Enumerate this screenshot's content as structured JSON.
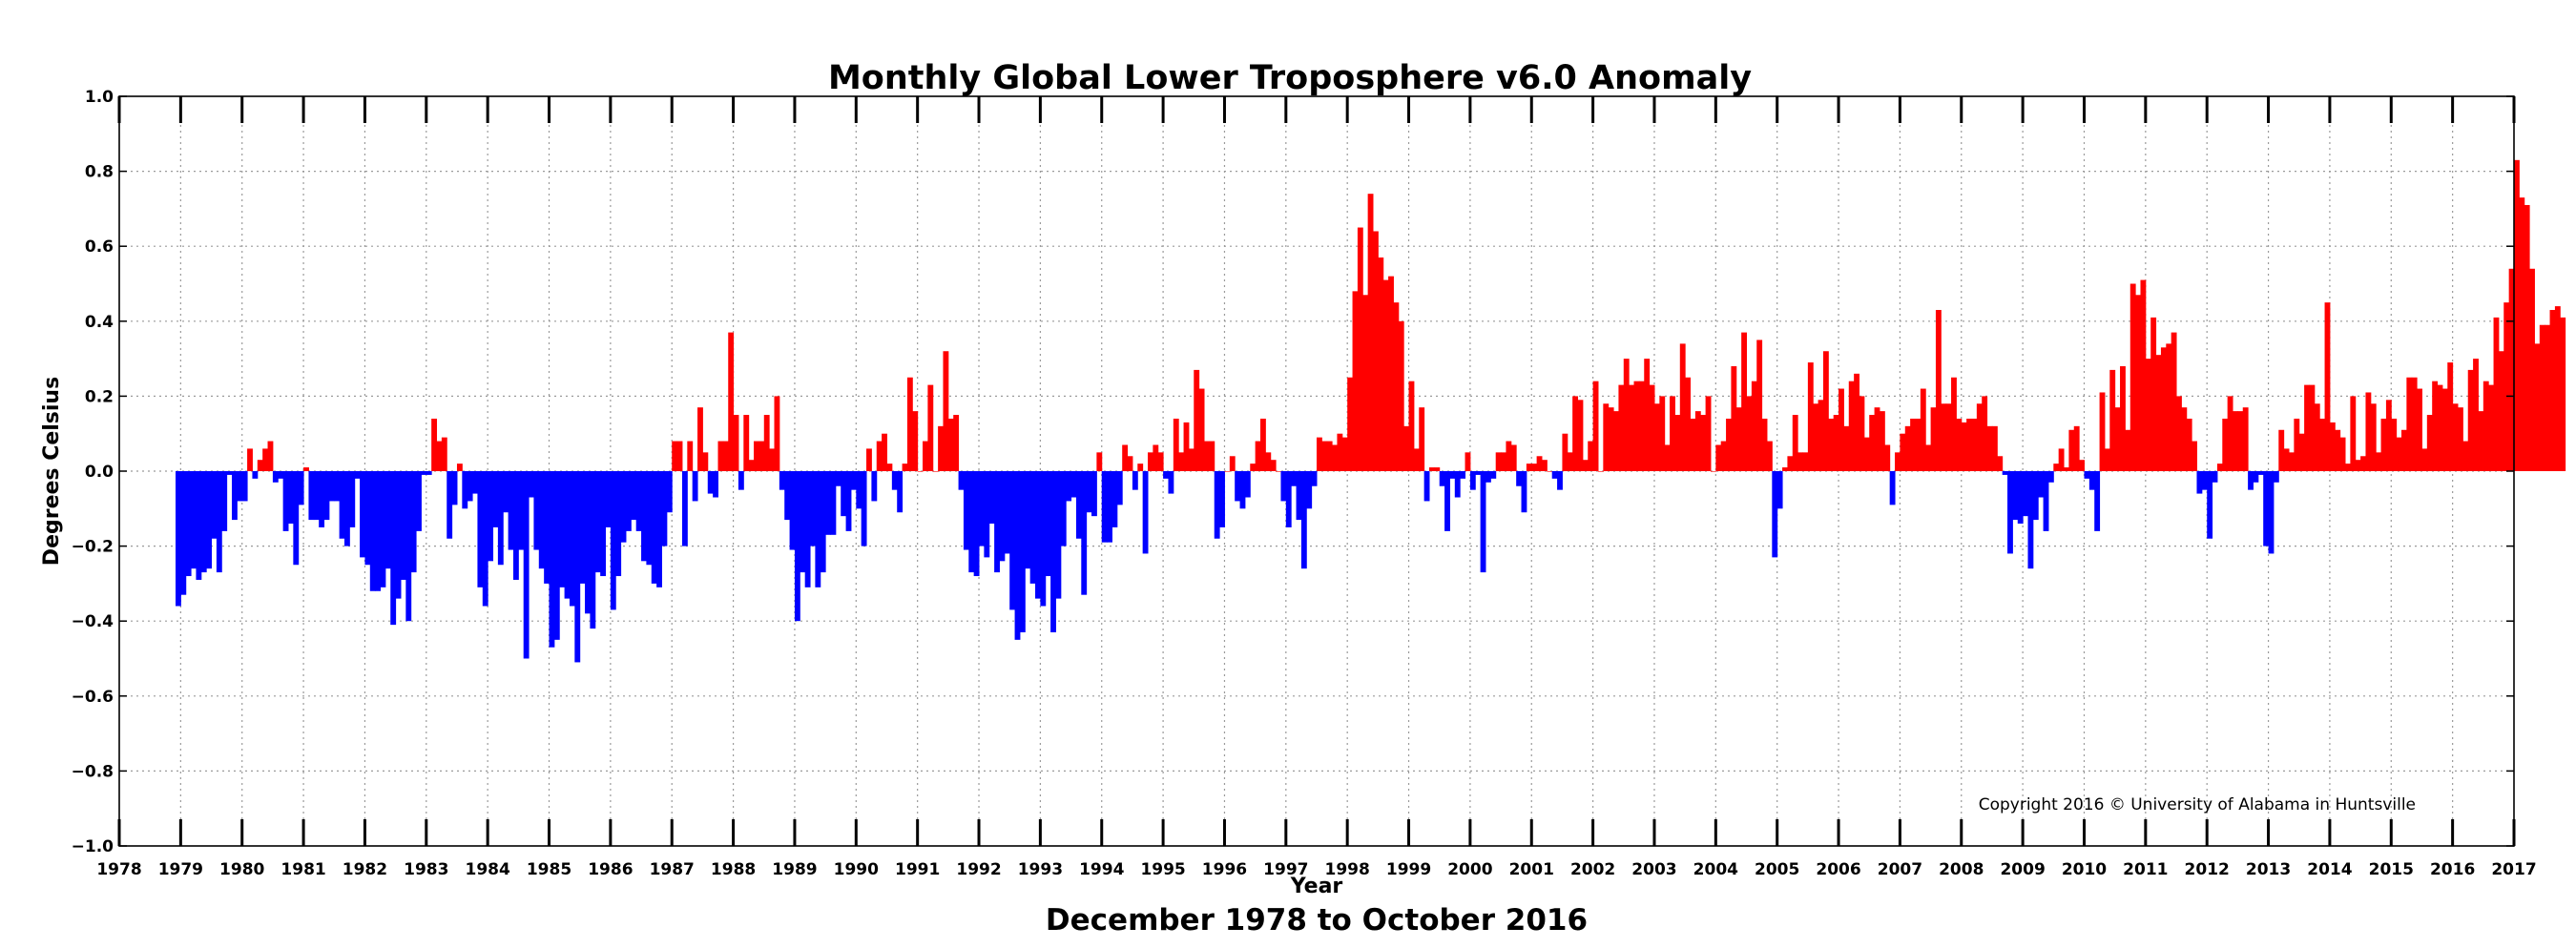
{
  "chart_data": {
    "type": "bar",
    "title": "Monthly Global Lower Troposphere v6.0 Anomaly",
    "subtitle": "December 1978 to October 2016",
    "xlabel": "Year",
    "ylabel": "Degrees Celsius",
    "copyright": "Copyright 2016 © University of Alabama in Huntsville",
    "xlim": [
      1978,
      2017
    ],
    "ylim": [
      -1.0,
      1.0
    ],
    "grid": true,
    "x_ticks": [
      "1978",
      "1979",
      "1980",
      "1981",
      "1982",
      "1983",
      "1984",
      "1985",
      "1986",
      "1987",
      "1988",
      "1989",
      "1990",
      "1991",
      "1992",
      "1993",
      "1994",
      "1995",
      "1996",
      "1997",
      "1998",
      "1999",
      "2000",
      "2001",
      "2002",
      "2003",
      "2004",
      "2005",
      "2006",
      "2007",
      "2008",
      "2009",
      "2010",
      "2011",
      "2012",
      "2013",
      "2014",
      "2015",
      "2016",
      "2017"
    ],
    "y_ticks": [
      "1.0",
      "0.8",
      "0.6",
      "0.4",
      "0.2",
      "0.0",
      "−0.2",
      "−0.4",
      "−0.6",
      "−0.8",
      "−1.0"
    ],
    "start_year": 1978,
    "start_month": 12,
    "positive_color": "#ff0000",
    "negative_color": "#0000ff",
    "values": [
      -0.36,
      -0.33,
      -0.28,
      -0.26,
      -0.29,
      -0.27,
      -0.26,
      -0.18,
      -0.27,
      -0.16,
      -0.01,
      -0.13,
      -0.08,
      -0.08,
      0.06,
      -0.02,
      0.03,
      0.06,
      0.08,
      -0.03,
      -0.02,
      -0.16,
      -0.14,
      -0.25,
      -0.09,
      0.01,
      -0.13,
      -0.13,
      -0.15,
      -0.13,
      -0.08,
      -0.08,
      -0.18,
      -0.2,
      -0.15,
      -0.02,
      -0.23,
      -0.25,
      -0.32,
      -0.32,
      -0.31,
      -0.26,
      -0.41,
      -0.34,
      -0.29,
      -0.4,
      -0.27,
      -0.16,
      -0.01,
      -0.01,
      0.14,
      0.08,
      0.09,
      -0.18,
      -0.09,
      0.02,
      -0.1,
      -0.08,
      -0.06,
      -0.31,
      -0.36,
      -0.24,
      -0.15,
      -0.25,
      -0.11,
      -0.21,
      -0.29,
      -0.21,
      -0.5,
      -0.07,
      -0.21,
      -0.26,
      -0.3,
      -0.47,
      -0.45,
      -0.31,
      -0.34,
      -0.36,
      -0.51,
      -0.3,
      -0.38,
      -0.42,
      -0.27,
      -0.28,
      -0.15,
      -0.37,
      -0.28,
      -0.19,
      -0.16,
      -0.13,
      -0.16,
      -0.24,
      -0.25,
      -0.3,
      -0.31,
      -0.2,
      -0.11,
      0.08,
      0.08,
      -0.2,
      0.08,
      -0.08,
      0.17,
      0.05,
      -0.06,
      -0.07,
      0.08,
      0.08,
      0.37,
      0.15,
      -0.05,
      0.15,
      0.03,
      0.08,
      0.08,
      0.15,
      0.06,
      0.2,
      -0.05,
      -0.13,
      -0.21,
      -0.4,
      -0.27,
      -0.31,
      -0.2,
      -0.31,
      -0.27,
      -0.17,
      -0.17,
      -0.04,
      -0.12,
      -0.16,
      -0.05,
      -0.1,
      -0.2,
      0.06,
      -0.08,
      0.08,
      0.1,
      0.02,
      -0.05,
      -0.11,
      0.02,
      0.25,
      0.16,
      0.0,
      0.08,
      0.23,
      0.0,
      0.12,
      0.32,
      0.14,
      0.15,
      -0.05,
      -0.21,
      -0.27,
      -0.28,
      -0.2,
      -0.23,
      -0.14,
      -0.27,
      -0.24,
      -0.22,
      -0.37,
      -0.45,
      -0.43,
      -0.26,
      -0.3,
      -0.34,
      -0.36,
      -0.28,
      -0.43,
      -0.34,
      -0.2,
      -0.08,
      -0.07,
      -0.18,
      -0.33,
      -0.11,
      -0.12,
      0.05,
      -0.19,
      -0.19,
      -0.15,
      -0.09,
      0.07,
      0.04,
      -0.05,
      0.02,
      -0.22,
      0.05,
      0.07,
      0.05,
      -0.02,
      -0.06,
      0.14,
      0.05,
      0.13,
      0.06,
      0.27,
      0.22,
      0.08,
      0.08,
      -0.18,
      -0.15,
      0.0,
      0.04,
      -0.08,
      -0.1,
      -0.07,
      0.02,
      0.08,
      0.14,
      0.05,
      0.03,
      0.0,
      -0.08,
      -0.15,
      -0.04,
      -0.13,
      -0.26,
      -0.1,
      -0.04,
      0.09,
      0.08,
      0.08,
      0.07,
      0.1,
      0.09,
      0.25,
      0.48,
      0.65,
      0.47,
      0.74,
      0.64,
      0.57,
      0.51,
      0.52,
      0.45,
      0.4,
      0.12,
      0.24,
      0.06,
      0.17,
      -0.08,
      0.01,
      0.01,
      -0.04,
      -0.16,
      -0.02,
      -0.07,
      -0.02,
      0.05,
      -0.05,
      -0.01,
      -0.27,
      -0.03,
      -0.02,
      0.05,
      0.05,
      0.08,
      0.07,
      -0.04,
      -0.11,
      0.02,
      0.02,
      0.04,
      0.03,
      0.0,
      -0.02,
      -0.05,
      0.1,
      0.05,
      0.2,
      0.19,
      0.03,
      0.08,
      0.24,
      0.0,
      0.18,
      0.17,
      0.16,
      0.23,
      0.3,
      0.23,
      0.24,
      0.24,
      0.3,
      0.23,
      0.18,
      0.2,
      0.07,
      0.2,
      0.15,
      0.34,
      0.25,
      0.14,
      0.16,
      0.15,
      0.2,
      0.0,
      0.07,
      0.08,
      0.14,
      0.28,
      0.17,
      0.37,
      0.2,
      0.24,
      0.35,
      0.14,
      0.08,
      -0.23,
      -0.1,
      0.01,
      0.04,
      0.15,
      0.05,
      0.05,
      0.29,
      0.18,
      0.19,
      0.32,
      0.14,
      0.15,
      0.22,
      0.12,
      0.24,
      0.26,
      0.2,
      0.09,
      0.15,
      0.17,
      0.16,
      0.07,
      -0.09,
      0.05,
      0.1,
      0.12,
      0.14,
      0.14,
      0.22,
      0.07,
      0.17,
      0.43,
      0.18,
      0.18,
      0.25,
      0.14,
      0.13,
      0.14,
      0.14,
      0.18,
      0.2,
      0.12,
      0.12,
      0.04,
      -0.01,
      -0.22,
      -0.13,
      -0.14,
      -0.12,
      -0.26,
      -0.13,
      -0.07,
      -0.16,
      -0.03,
      0.02,
      0.06,
      0.01,
      0.11,
      0.12,
      0.03,
      -0.02,
      -0.05,
      -0.16,
      0.21,
      0.06,
      0.27,
      0.17,
      0.28,
      0.11,
      0.5,
      0.47,
      0.51,
      0.3,
      0.41,
      0.31,
      0.33,
      0.34,
      0.37,
      0.2,
      0.17,
      0.14,
      0.08,
      -0.06,
      -0.05,
      -0.18,
      -0.03,
      0.02,
      0.14,
      0.2,
      0.16,
      0.16,
      0.17,
      -0.05,
      -0.03,
      -0.01,
      -0.2,
      -0.22,
      -0.03,
      0.11,
      0.06,
      0.05,
      0.14,
      0.1,
      0.23,
      0.23,
      0.18,
      0.14,
      0.45,
      0.13,
      0.11,
      0.09,
      0.02,
      0.2,
      0.03,
      0.04,
      0.21,
      0.18,
      0.05,
      0.14,
      0.19,
      0.14,
      0.09,
      0.11,
      0.25,
      0.25,
      0.22,
      0.06,
      0.15,
      0.24,
      0.23,
      0.22,
      0.29,
      0.18,
      0.17,
      0.08,
      0.27,
      0.3,
      0.16,
      0.24,
      0.23,
      0.41,
      0.32,
      0.45,
      0.54,
      0.83,
      0.73,
      0.71,
      0.54,
      0.34,
      0.39,
      0.39,
      0.43,
      0.44,
      0.41
    ]
  }
}
